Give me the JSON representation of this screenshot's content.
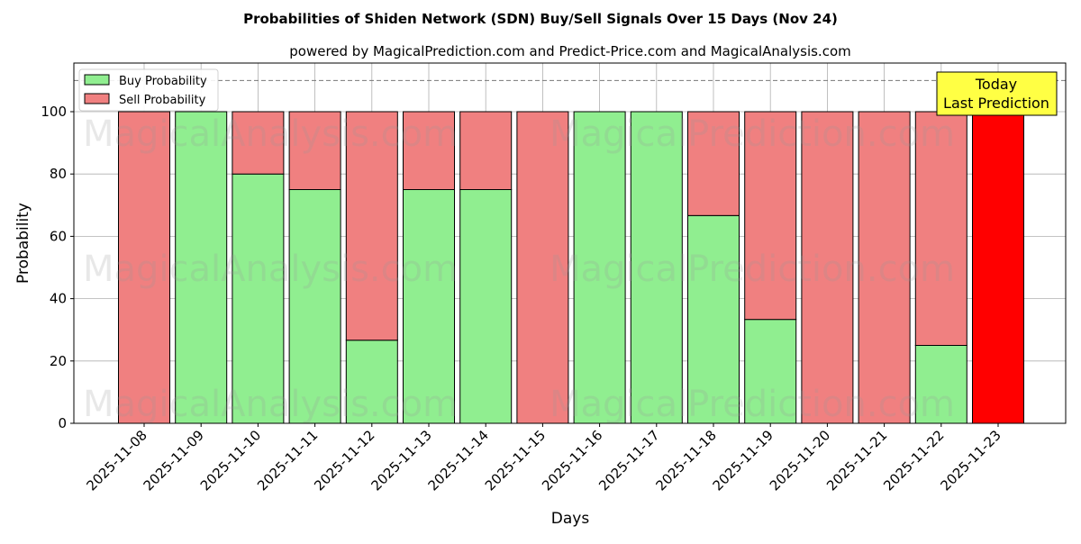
{
  "chart_data": {
    "type": "bar",
    "stacked": true,
    "title": "Probabilities of Shiden Network (SDN) Buy/Sell Signals Over 15 Days (Nov 24)",
    "subtitle": "powered by MagicalPrediction.com and Predict-Price.com and MagicalAnalysis.com",
    "xlabel": "Days",
    "ylabel": "Probability",
    "ylim": [
      0,
      115
    ],
    "yticks": [
      0,
      20,
      40,
      60,
      80,
      100
    ],
    "reference_line": 110,
    "grid": true,
    "legend_position": "top-left",
    "categories": [
      "2025-11-08",
      "2025-11-09",
      "2025-11-10",
      "2025-11-11",
      "2025-11-12",
      "2025-11-13",
      "2025-11-14",
      "2025-11-15",
      "2025-11-16",
      "2025-11-17",
      "2025-11-18",
      "2025-11-19",
      "2025-11-20",
      "2025-11-21",
      "2025-11-22",
      "2025-11-23"
    ],
    "series": [
      {
        "name": "Buy Probability",
        "color": "#90ee90",
        "values": [
          0,
          100,
          80,
          75,
          26.67,
          75,
          75,
          0,
          100,
          100,
          66.67,
          33.33,
          0,
          0,
          25,
          0
        ]
      },
      {
        "name": "Sell Probability",
        "color": "#f08080",
        "values": [
          100,
          0,
          20,
          25,
          73.33,
          25,
          25,
          100,
          0,
          0,
          33.33,
          66.67,
          100,
          100,
          75,
          100
        ]
      }
    ],
    "highlight_color": "#ff0000",
    "annotation": {
      "line1": "Today",
      "line2": "Last Prediction"
    },
    "watermarks": [
      "MagicalAnalysis.com",
      "MagicalPrediction.com"
    ]
  }
}
